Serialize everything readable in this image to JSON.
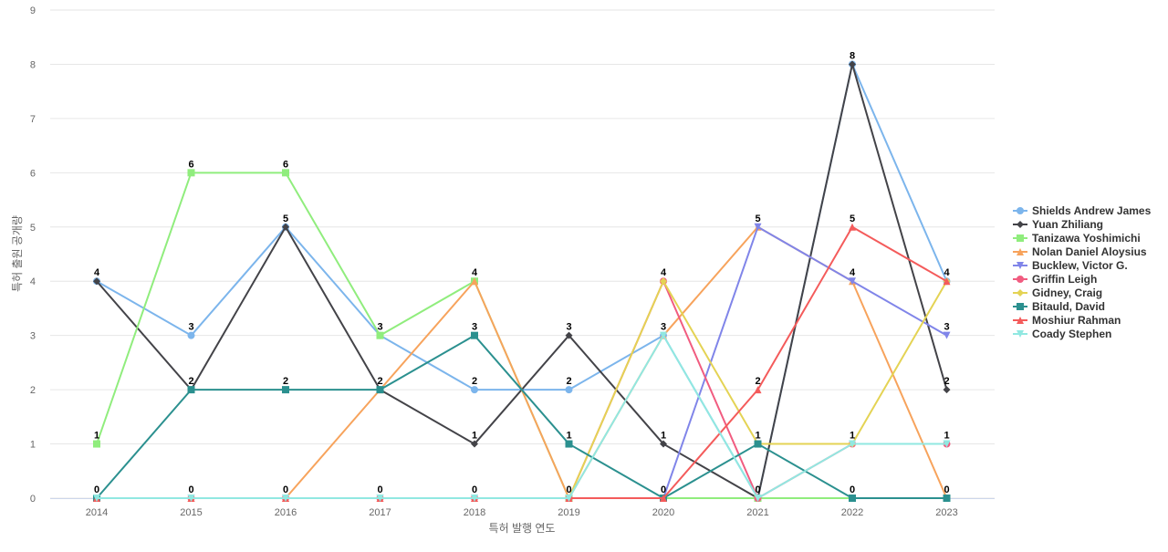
{
  "chart_data": {
    "type": "line",
    "title": "",
    "xlabel": "특허 발행 연도",
    "ylabel": "특허 출원 공개량",
    "ylim": [
      0,
      9
    ],
    "yticks": [
      "0",
      "1",
      "2",
      "3",
      "4",
      "5",
      "6",
      "7",
      "8",
      "9"
    ],
    "categories": [
      "2014",
      "2015",
      "2016",
      "2017",
      "2018",
      "2019",
      "2020",
      "2021",
      "2022",
      "2023"
    ],
    "grid": true,
    "legend_position": "right",
    "series": [
      {
        "name": "Shields Andrew James",
        "color": "#7cb5ec",
        "marker": "circle",
        "values": [
          4,
          3,
          5,
          3,
          2,
          2,
          3,
          0,
          8,
          4
        ]
      },
      {
        "name": "Yuan Zhiliang",
        "color": "#434348",
        "marker": "diamond",
        "values": [
          4,
          2,
          5,
          2,
          1,
          3,
          1,
          0,
          8,
          2
        ]
      },
      {
        "name": "Tanizawa Yoshimichi",
        "color": "#90ed7d",
        "marker": "square",
        "values": [
          1,
          6,
          6,
          3,
          4,
          0,
          0,
          0,
          0,
          0
        ]
      },
      {
        "name": "Nolan Daniel Aloysius",
        "color": "#f7a35c",
        "marker": "triangle",
        "values": [
          0,
          0,
          0,
          2,
          4,
          0,
          3,
          5,
          4,
          0
        ]
      },
      {
        "name": "Bucklew, Victor G.",
        "color": "#8085e9",
        "marker": "triangle-down",
        "values": [
          0,
          0,
          0,
          0,
          0,
          0,
          0,
          5,
          4,
          3
        ]
      },
      {
        "name": "Griffin Leigh",
        "color": "#f15c80",
        "marker": "circle",
        "values": [
          0,
          0,
          0,
          0,
          0,
          0,
          4,
          0,
          1,
          1
        ]
      },
      {
        "name": "Gidney, Craig",
        "color": "#e4d354",
        "marker": "diamond",
        "values": [
          0,
          0,
          0,
          0,
          0,
          0,
          4,
          1,
          1,
          4
        ]
      },
      {
        "name": "Bitauld, David",
        "color": "#2b908f",
        "marker": "square",
        "values": [
          0,
          2,
          2,
          2,
          3,
          1,
          0,
          1,
          0,
          0
        ]
      },
      {
        "name": "Moshiur Rahman",
        "color": "#f45b5b",
        "marker": "triangle",
        "values": [
          0,
          0,
          0,
          0,
          0,
          0,
          0,
          2,
          5,
          4
        ]
      },
      {
        "name": "Coady Stephen",
        "color": "#91e8e1",
        "marker": "triangle-down",
        "values": [
          0,
          0,
          0,
          0,
          0,
          0,
          3,
          0,
          1,
          1
        ]
      }
    ],
    "data_labels": [
      {
        "category": "2014",
        "values": [
          0,
          1,
          4
        ]
      },
      {
        "category": "2015",
        "values": [
          0,
          2,
          3,
          6
        ]
      },
      {
        "category": "2016",
        "values": [
          0,
          2,
          5,
          6
        ]
      },
      {
        "category": "2017",
        "values": [
          0,
          2,
          3
        ]
      },
      {
        "category": "2018",
        "values": [
          0,
          1,
          2,
          3,
          4
        ]
      },
      {
        "category": "2019",
        "values": [
          0,
          1,
          2,
          3
        ]
      },
      {
        "category": "2020",
        "values": [
          0,
          1,
          3,
          4
        ]
      },
      {
        "category": "2021",
        "values": [
          0,
          1,
          2,
          5
        ]
      },
      {
        "category": "2022",
        "values": [
          0,
          1,
          4,
          5,
          8
        ]
      },
      {
        "category": "2023",
        "values": [
          0,
          1,
          2,
          3,
          4
        ]
      }
    ]
  }
}
